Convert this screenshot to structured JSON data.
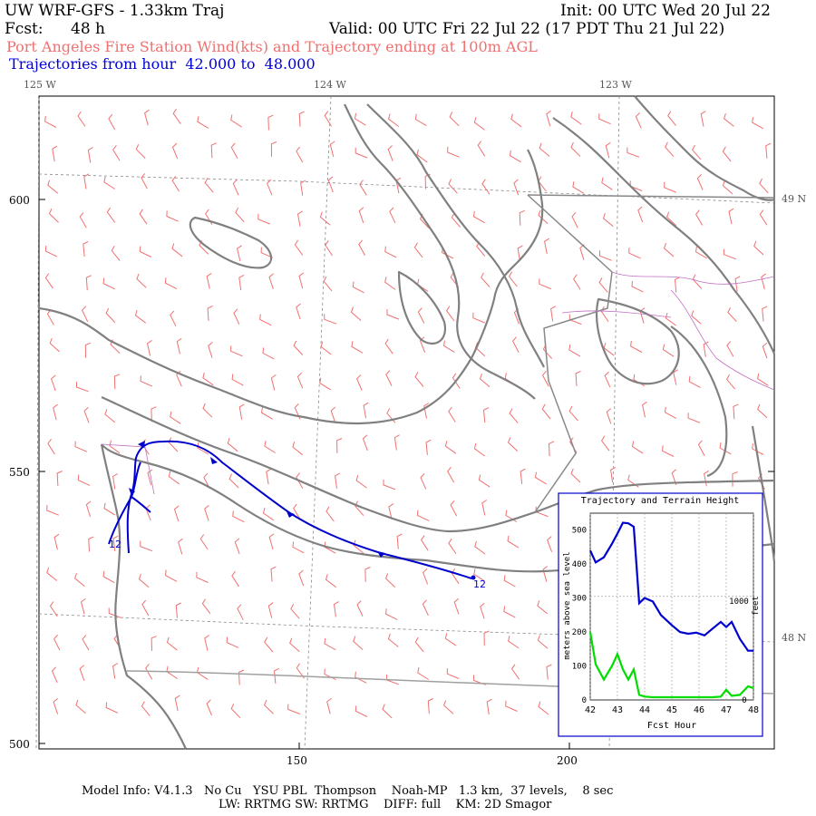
{
  "header": {
    "model": "UW WRF-GFS - 1.33km Traj",
    "init": "Init: 00 UTC Wed 20 Jul 22",
    "fcst_label": "Fcst:",
    "fcst_value": "48 h",
    "valid": "Valid: 00 UTC Fri 22 Jul 22 (17 PDT Thu 21 Jul 22)",
    "title_line": "Port Angeles Fire Station Wind(kts) and Trajectory ending at 100m AGL",
    "traj_line": "Trajectories from hour  42.000 to  48.000"
  },
  "map": {
    "lon_labels": [
      "125 W",
      "124 W",
      "123 W"
    ],
    "lat_labels": [
      "49 N",
      "48 N"
    ],
    "y_ticks": [
      "600",
      "550",
      "500"
    ],
    "x_ticks": [
      "150",
      "200"
    ],
    "trajectory_end_labels": [
      "12",
      "12"
    ],
    "colors": {
      "coast": "#808080",
      "border": "#a0a0a0",
      "county": "#c070c0",
      "wind_barbs": "#f07070",
      "trajectory": "#0000cc"
    }
  },
  "inset": {
    "title": "Trajectory and Terrain Height",
    "ylabel_left": "meters above sea level",
    "ylabel_right": "feet",
    "xlabel": "Fcst Hour",
    "y_ticks": [
      "0",
      "100",
      "200",
      "300",
      "400",
      "500"
    ],
    "x_ticks": [
      "42",
      "43",
      "44",
      "45",
      "46",
      "47",
      "48"
    ],
    "right_ticks": [
      "0",
      "1000"
    ]
  },
  "chart_data": {
    "type": "line",
    "title": "Trajectory and Terrain Height",
    "xlabel": "Fcst Hour",
    "ylabel": "meters above sea level",
    "xlim": [
      42,
      48
    ],
    "ylim": [
      0,
      550
    ],
    "x": [
      42.0,
      42.2,
      42.5,
      42.8,
      43.0,
      43.2,
      43.4,
      43.6,
      43.8,
      44.0,
      44.3,
      44.6,
      45.0,
      45.3,
      45.6,
      45.9,
      46.2,
      46.5,
      46.8,
      47.0,
      47.2,
      47.5,
      47.8,
      48.0
    ],
    "series": [
      {
        "name": "trajectory",
        "color": "#0000cc",
        "values": [
          440,
          405,
          420,
          460,
          490,
          522,
          520,
          510,
          285,
          300,
          290,
          250,
          220,
          200,
          195,
          198,
          190,
          210,
          230,
          215,
          230,
          180,
          145,
          145
        ]
      },
      {
        "name": "terrain",
        "color": "#00dd00",
        "values": [
          200,
          105,
          60,
          100,
          135,
          90,
          60,
          90,
          15,
          10,
          8,
          8,
          8,
          8,
          8,
          8,
          8,
          8,
          10,
          30,
          12,
          15,
          40,
          35
        ]
      }
    ]
  },
  "footer": {
    "line1": "Model Info: V4.1.3   No Cu   YSU PBL  Thompson    Noah-MP   1.3 km,  37 levels,    8 sec",
    "line2": "LW: RRTMG SW: RRTMG    DIFF: full    KM: 2D Smagor"
  }
}
